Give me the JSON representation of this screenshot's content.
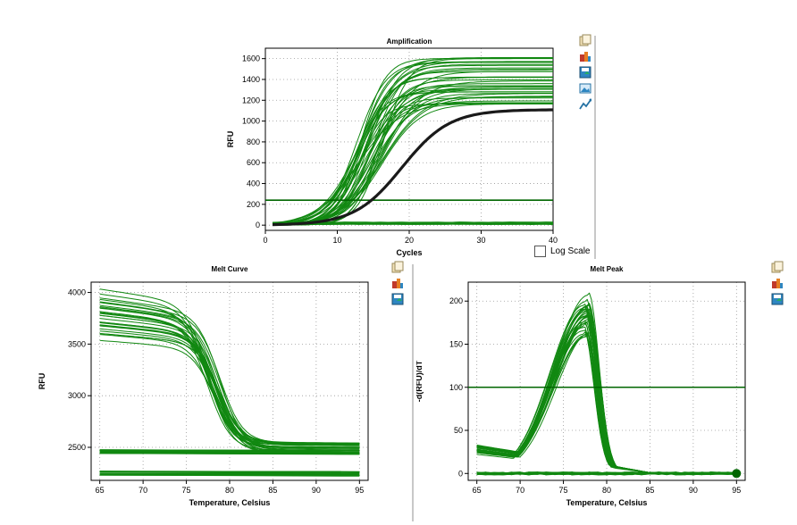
{
  "log_scale_label": "Log Scale",
  "colors": {
    "curve": "#118811",
    "curve_dark": "#006600",
    "highlight": "#1a1a1a",
    "grid": "#9a9a9a"
  },
  "toolbar_icons": [
    "copy-icon",
    "export-icon",
    "save-icon",
    "image-icon",
    "trend-icon"
  ],
  "chart_data": [
    {
      "id": "amplification",
      "type": "line",
      "title": "Amplification",
      "xlabel": "Cycles",
      "ylabel": "RFU",
      "xlim": [
        0,
        40
      ],
      "ylim": [
        -50,
        1700
      ],
      "xticks": [
        0,
        10,
        20,
        30,
        40
      ],
      "yticks": [
        0,
        200,
        400,
        600,
        800,
        1000,
        1200,
        1400,
        1600
      ],
      "grid": true,
      "threshold": 240,
      "curve_model": "sigmoid",
      "x_range": [
        1,
        40
      ],
      "n_green_curves": 40,
      "green_plateau_range": [
        1150,
        1620
      ],
      "green_midpoint_range": [
        12.5,
        16.5
      ],
      "n_flat_curves": 8,
      "highlighted_series": {
        "plateau": 1110,
        "midpoint": 19,
        "slope": 3.3
      }
    },
    {
      "id": "melt_curve",
      "type": "line",
      "title": "Melt Curve",
      "xlabel": "Temperature, Celsius",
      "ylabel": "RFU",
      "xlim": [
        64,
        96
      ],
      "ylim": [
        2180,
        4100
      ],
      "xticks": [
        65,
        70,
        75,
        80,
        85,
        90,
        95
      ],
      "yticks": [
        2500,
        3000,
        3500,
        4000
      ],
      "grid": true,
      "x_range": [
        65,
        95
      ],
      "n_decay_curves": 30,
      "start_range": [
        3530,
        4040
      ],
      "end_range": [
        2450,
        2560
      ],
      "transition_temp_range": [
        77.5,
        79
      ],
      "flat_band_levels": [
        2250,
        2460
      ]
    },
    {
      "id": "melt_peak",
      "type": "line",
      "title": "Melt Peak",
      "xlabel": "Temperature, Celsius",
      "ylabel": "-d(RFU)/dT",
      "xlim": [
        64,
        96
      ],
      "ylim": [
        -8,
        222
      ],
      "xticks": [
        65,
        70,
        75,
        80,
        85,
        90,
        95
      ],
      "yticks": [
        0,
        50,
        100,
        150,
        200
      ],
      "grid": true,
      "threshold": 100,
      "x_range": [
        65,
        95
      ],
      "n_peak_curves": 30,
      "peak_temp_range": [
        77.3,
        78.1
      ],
      "peak_height_range": [
        158,
        210
      ],
      "baseline_start_range": [
        22,
        33
      ]
    }
  ]
}
